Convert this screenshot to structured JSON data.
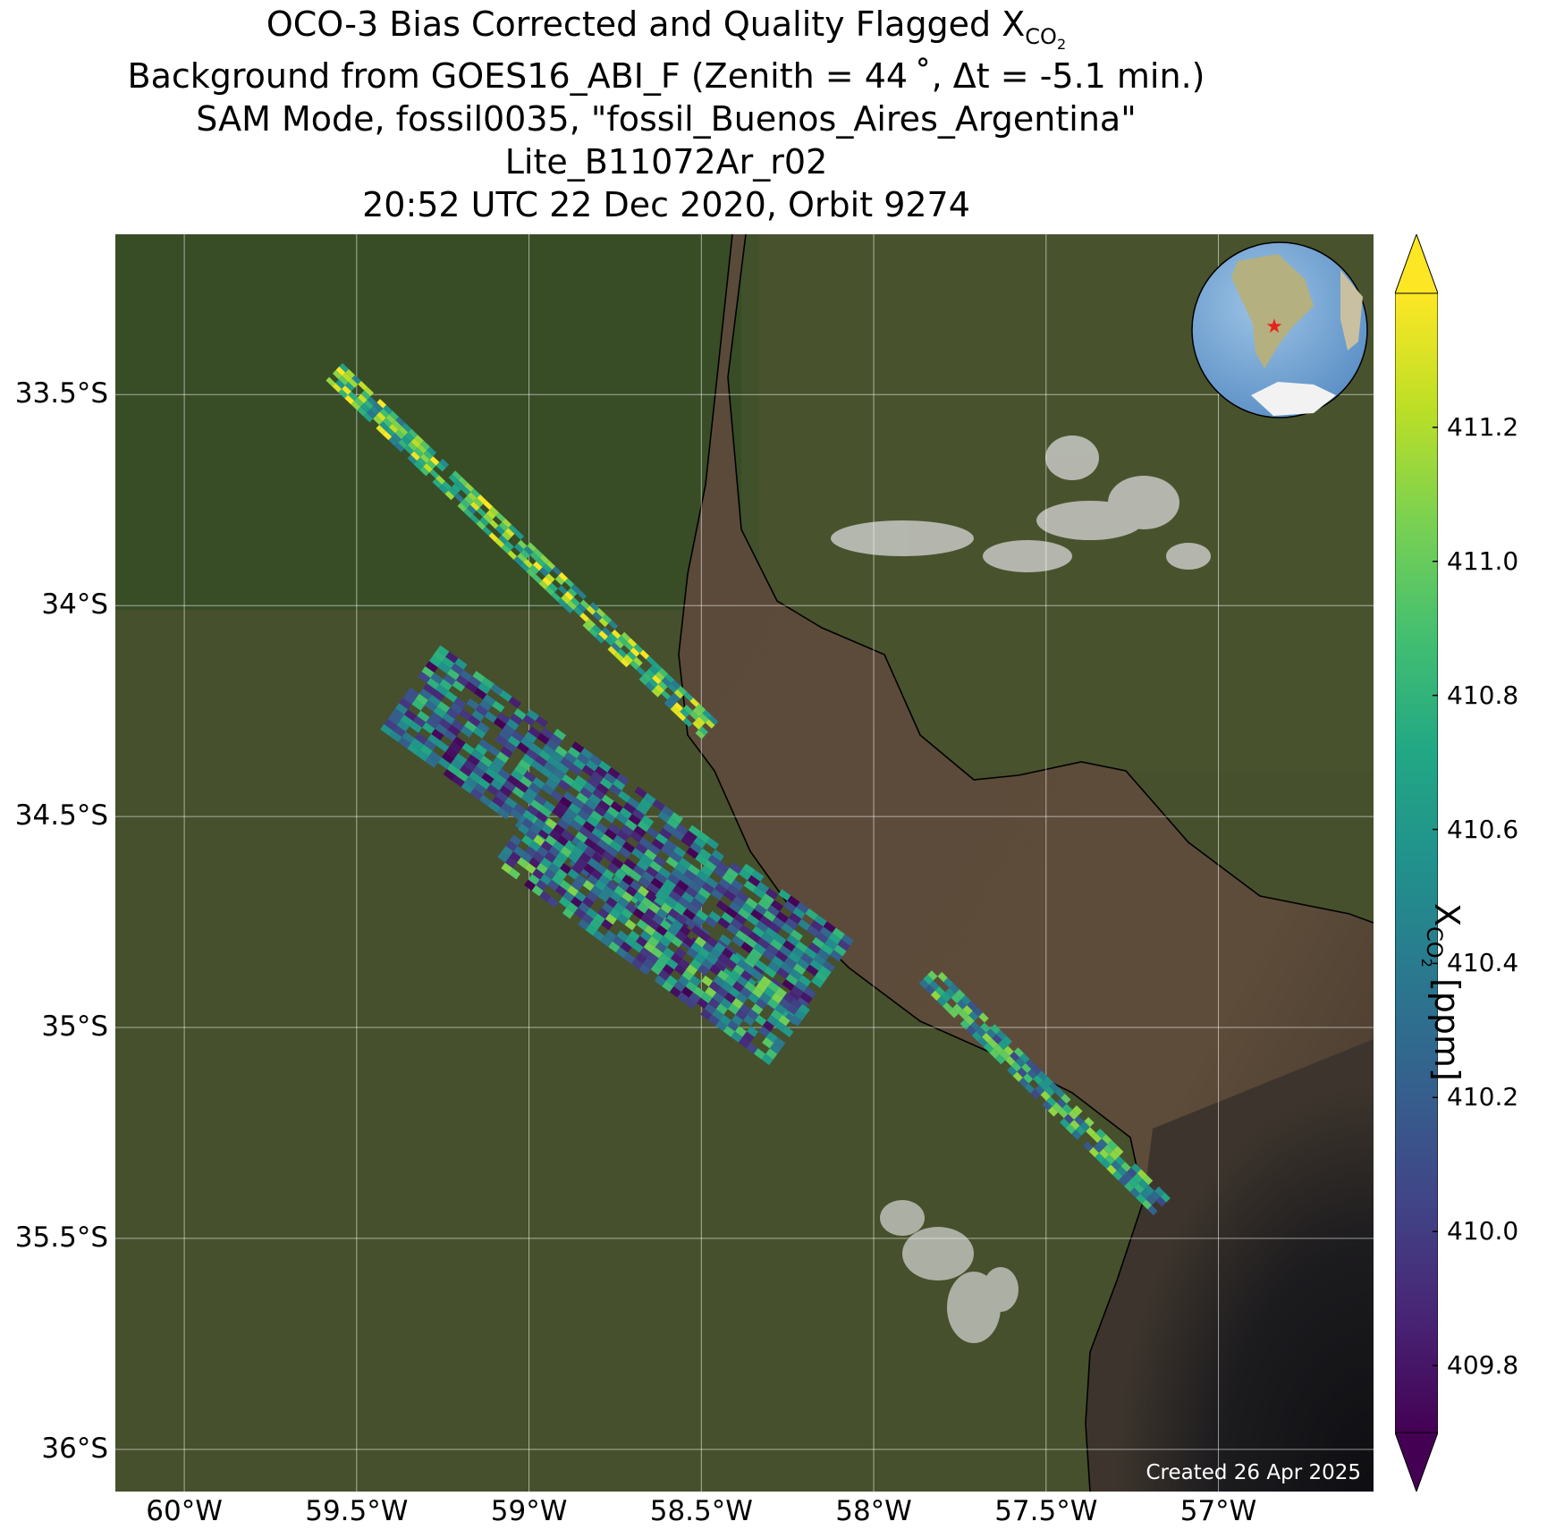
{
  "title": {
    "line1_prefix": "OCO-3 Bias Corrected and Quality Flagged X",
    "line1_sub": "CO",
    "line1_subsub": "2",
    "line2": "Background from GOES16_ABI_F (Zenith = 44 ˚, Δt = -5.1 min.)",
    "line3": "SAM Mode, fossil0035, \"fossil_Buenos_Aires_Argentina\"",
    "line4": "Lite_B11072Ar_r02",
    "line5": "20:52 UTC 22 Dec 2020, Orbit 9274"
  },
  "map": {
    "lon_range": [
      -60.2,
      -56.55
    ],
    "lat_range": [
      -36.1,
      -33.12
    ],
    "lat_ticks": [
      {
        "value": -33.5,
        "label": "33.5°S"
      },
      {
        "value": -34.0,
        "label": "34°S"
      },
      {
        "value": -34.5,
        "label": "34.5°S"
      },
      {
        "value": -35.0,
        "label": "35°S"
      },
      {
        "value": -35.5,
        "label": "35.5°S"
      },
      {
        "value": -36.0,
        "label": "36°S"
      }
    ],
    "lon_ticks": [
      {
        "value": -60.0,
        "label": "60°W"
      },
      {
        "value": -59.5,
        "label": "59.5°W"
      },
      {
        "value": -59.0,
        "label": "59°W"
      },
      {
        "value": -58.5,
        "label": "58.5°W"
      },
      {
        "value": -58.0,
        "label": "58°W"
      },
      {
        "value": -57.5,
        "label": "57.5°W"
      },
      {
        "value": -57.0,
        "label": "57°W"
      }
    ],
    "gridlines": true,
    "target_marker": "red-star",
    "created_label": "Created 26 Apr 2025",
    "colors": {
      "land": "#454a2a",
      "water": "#5e4c3a",
      "ocean_dark": "#15151a",
      "cloud": "#dcdcdc",
      "marker": "#e8231c"
    }
  },
  "colorbar": {
    "colormap": "viridis",
    "range": [
      409.7,
      411.4
    ],
    "extend": "both",
    "ticks": [
      409.8,
      410.0,
      410.2,
      410.4,
      410.6,
      410.8,
      411.0,
      411.2
    ],
    "tick_labels": [
      "409.8",
      "410.0",
      "410.2",
      "410.4",
      "410.6",
      "410.8",
      "411.0",
      "411.2"
    ],
    "label_prefix": "X",
    "label_sub": "CO",
    "label_subsub": "2",
    "label_suffix": " [ppm]"
  },
  "swaths": [
    {
      "name": "swath-north",
      "start": [
        -59.57,
        -33.45
      ],
      "end": [
        -58.48,
        -34.3
      ],
      "width_deg": 0.07,
      "rows": 60,
      "cols": 5,
      "mean": 410.9,
      "spread": 0.55
    },
    {
      "name": "swath-center",
      "start": [
        -59.35,
        -34.2
      ],
      "end": [
        -58.15,
        -34.9
      ],
      "width_deg": 0.3,
      "rows": 46,
      "cols": 16,
      "mean": 410.3,
      "spread": 0.6
    },
    {
      "name": "swath-center-low",
      "start": [
        -59.05,
        -34.55
      ],
      "end": [
        -58.25,
        -35.03
      ],
      "width_deg": 0.2,
      "rows": 36,
      "cols": 10,
      "mean": 410.4,
      "spread": 0.7
    },
    {
      "name": "swath-east",
      "start": [
        -57.85,
        -34.88
      ],
      "end": [
        -57.17,
        -35.43
      ],
      "width_deg": 0.07,
      "rows": 40,
      "cols": 4,
      "mean": 410.6,
      "spread": 0.55
    }
  ]
}
